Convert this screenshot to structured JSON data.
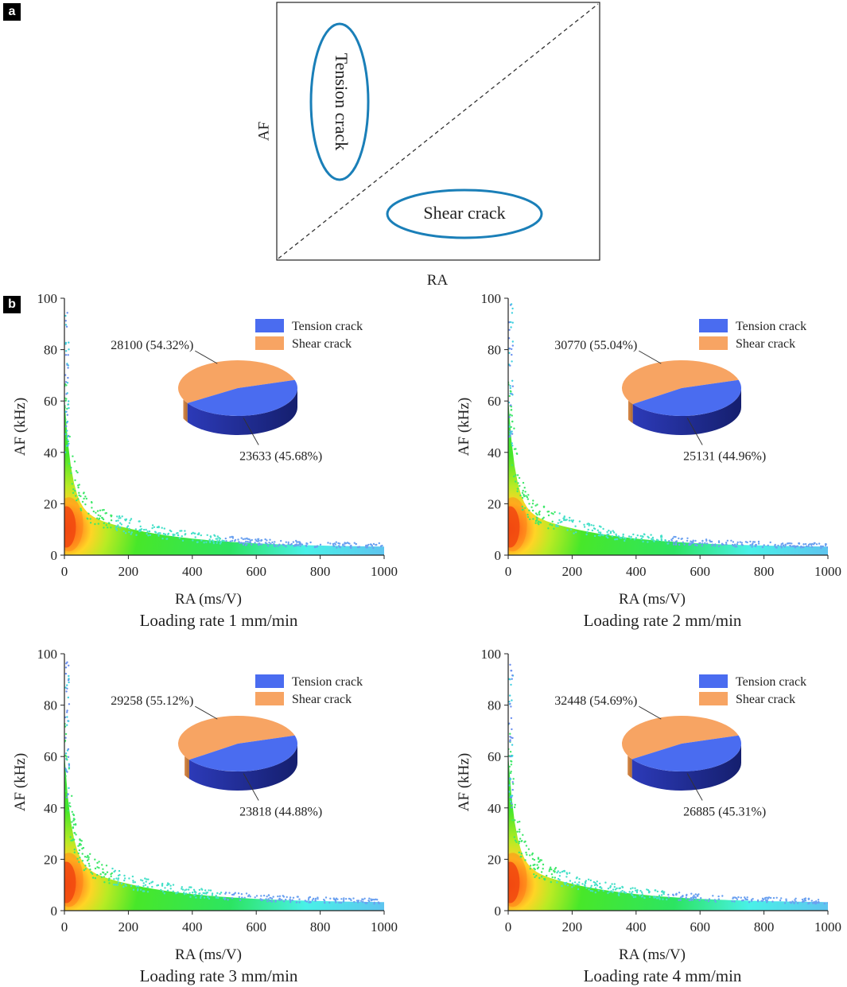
{
  "panel_labels": {
    "a": "a",
    "b": "b"
  },
  "schematic": {
    "x_label": "RA",
    "y_label": "AF",
    "tension_label": "Tension crack",
    "shear_label": "Shear crack",
    "ellipse_color": "#1a7fb8"
  },
  "colors": {
    "tension": "#4a6cf0",
    "tension_dark": "#1f2b8f",
    "shear": "#f7a463",
    "shear_dark": "#c97a3c",
    "density_scale": [
      "#3ab8f5",
      "#3ff0e6",
      "#21e35a",
      "#3ee61e",
      "#b4ea18",
      "#ffd21a",
      "#ff7a14",
      "#e61e0c"
    ]
  },
  "chart_data": [
    {
      "type": "scatter",
      "subtitle": "Loading rate 1 mm/min",
      "xlabel": "RA (ms/V)",
      "ylabel": "AF (kHz)",
      "xlim": [
        0,
        1000
      ],
      "ylim": [
        0,
        100
      ],
      "xticks": [
        "0",
        "200",
        "400",
        "600",
        "800",
        "1000"
      ],
      "yticks": [
        "0",
        "20",
        "40",
        "60",
        "80",
        "100"
      ],
      "legend": [
        "Tension crack",
        "Shear crack"
      ],
      "pie": {
        "tension": 23633,
        "shear": 28100,
        "tension_label": "23633 (45.68%)",
        "shear_label": "28100 (54.32%)"
      }
    },
    {
      "type": "scatter",
      "subtitle": "Loading rate 2 mm/min",
      "xlabel": "RA (ms/V)",
      "ylabel": "AF (kHz)",
      "xlim": [
        0,
        1000
      ],
      "ylim": [
        0,
        100
      ],
      "xticks": [
        "0",
        "200",
        "400",
        "600",
        "800",
        "1000"
      ],
      "yticks": [
        "0",
        "20",
        "40",
        "60",
        "80",
        "100"
      ],
      "legend": [
        "Tension crack",
        "Shear crack"
      ],
      "pie": {
        "tension": 25131,
        "shear": 30770,
        "tension_label": "25131 (44.96%)",
        "shear_label": "30770 (55.04%)"
      }
    },
    {
      "type": "scatter",
      "subtitle": "Loading rate 3 mm/min",
      "xlabel": "RA (ms/V)",
      "ylabel": "AF (kHz)",
      "xlim": [
        0,
        1000
      ],
      "ylim": [
        0,
        100
      ],
      "xticks": [
        "0",
        "200",
        "400",
        "600",
        "800",
        "1000"
      ],
      "yticks": [
        "0",
        "20",
        "40",
        "60",
        "80",
        "100"
      ],
      "legend": [
        "Tension crack",
        "Shear crack"
      ],
      "pie": {
        "tension": 23818,
        "shear": 29258,
        "tension_label": "23818 (44.88%)",
        "shear_label": "29258 (55.12%)"
      }
    },
    {
      "type": "scatter",
      "subtitle": "Loading rate 4 mm/min",
      "xlabel": "RA (ms/V)",
      "ylabel": "AF (kHz)",
      "xlim": [
        0,
        1000
      ],
      "ylim": [
        0,
        100
      ],
      "xticks": [
        "0",
        "200",
        "400",
        "600",
        "800",
        "1000"
      ],
      "yticks": [
        "0",
        "20",
        "40",
        "60",
        "80",
        "100"
      ],
      "legend": [
        "Tension crack",
        "Shear crack"
      ],
      "pie": {
        "tension": 26885,
        "shear": 32448,
        "tension_label": "26885 (45.31%)",
        "shear_label": "32448 (54.69%)"
      }
    }
  ]
}
